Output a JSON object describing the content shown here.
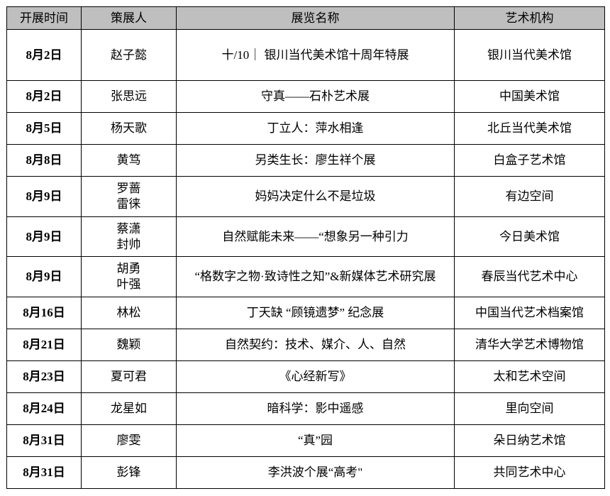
{
  "table": {
    "header_bg": "#bfbfbf",
    "columns": [
      "开展时间",
      "策展人",
      "展览名称",
      "艺术机构"
    ],
    "rows": [
      {
        "date": "8月2日",
        "curator": "赵子懿",
        "title": "十/10｜ 银川当代美术馆十周年特展",
        "venue": "银川当代美术馆"
      },
      {
        "date": "8月2日",
        "curator": "张思远",
        "title": "守真——石朴艺术展",
        "venue": "中国美术馆"
      },
      {
        "date": "8月5日",
        "curator": "杨天歌",
        "title": "丁立人：萍水相逢",
        "venue": "北丘当代美术馆"
      },
      {
        "date": "8月8日",
        "curator": "黄笃",
        "title": "另类生长：廖生祥个展",
        "venue": "白盒子艺术馆"
      },
      {
        "date": "8月9日",
        "curator": "罗蔷\n雷徕",
        "title": "妈妈决定什么不是垃圾",
        "venue": "有边空间"
      },
      {
        "date": "8月9日",
        "curator": "蔡潇\n封帅",
        "title": "自然赋能未来——“想象另一种引力",
        "venue": "今日美术馆"
      },
      {
        "date": "8月9日",
        "curator": "胡勇\n叶强",
        "title": "“格数字之物·致诗性之知”&新媒体艺术研究展",
        "venue": "春辰当代艺术中心"
      },
      {
        "date": "8月16日",
        "curator": "林松",
        "title": "丁天缺 “顾镜遗梦” 纪念展",
        "venue": "中国当代艺术档案馆"
      },
      {
        "date": "8月21日",
        "curator": "魏颖",
        "title": "自然契约：技术、媒介、人、自然",
        "venue": "清华大学艺术博物馆"
      },
      {
        "date": "8月23日",
        "curator": "夏可君",
        "title": "《心经新写》",
        "venue": "太和艺术空间"
      },
      {
        "date": "8月24日",
        "curator": "龙星如",
        "title": "暗科学：影中遥感",
        "venue": "里向空间"
      },
      {
        "date": "8月31日",
        "curator": "廖雯",
        "title": "“真”园",
        "venue": "朵日纳艺术馆"
      },
      {
        "date": "8月31日",
        "curator": "彭锋",
        "title": "李洪波个展“高考\"",
        "venue": "共同艺术中心"
      }
    ]
  }
}
